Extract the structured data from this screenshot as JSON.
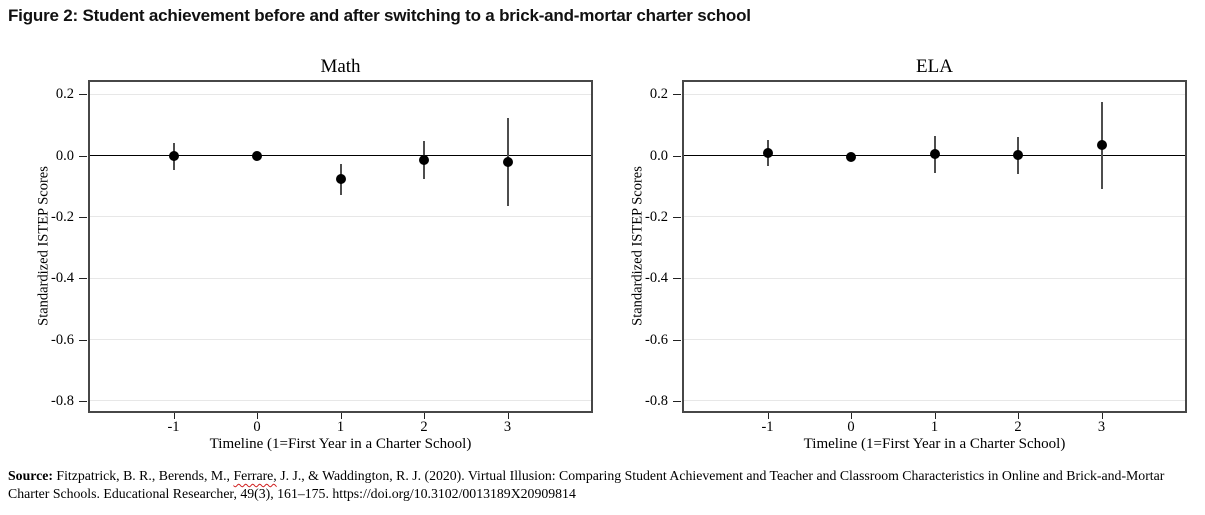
{
  "figure": {
    "title": "Figure 2: Student achievement before and after switching to a brick-and-mortar charter school"
  },
  "source": {
    "label": "Source:",
    "text_before": " Fitzpatrick, B. R., Berends, M., ",
    "misspelled": "Ferrare,",
    "text_after": " J. J., & Waddington, R. J. (2020). Virtual Illusion: Comparing Student Achievement and Teacher and Classroom Characteristics in Online and Brick-and-Mortar Charter Schools. Educational Researcher, 49(3), 161–175. https://doi.org/10.3102/0013189X20909814",
    "misspelling_underline_color": "#cf1d1d"
  },
  "chart_data": [
    {
      "type": "scatter",
      "title": "Math",
      "xlabel": "Timeline (1=First Year in a Charter School)",
      "ylabel": "Standardized ISTEP Scores",
      "x": [
        -1,
        0,
        1,
        2,
        3
      ],
      "y": [
        -0.002,
        0.0,
        -0.077,
        -0.013,
        -0.022
      ],
      "ci_low": [
        -0.046,
        null,
        -0.128,
        -0.077,
        -0.163
      ],
      "ci_high": [
        0.042,
        null,
        -0.028,
        0.048,
        0.121
      ],
      "xticks": [
        {
          "v": -1,
          "label": "-1"
        },
        {
          "v": 0,
          "label": "0"
        },
        {
          "v": 1,
          "label": "1"
        },
        {
          "v": 2,
          "label": "2"
        },
        {
          "v": 3,
          "label": "3"
        }
      ],
      "yticks": [
        {
          "v": 0.2,
          "label": "0.2"
        },
        {
          "v": 0.0,
          "label": "0.0"
        },
        {
          "v": -0.2,
          "label": "-0.2"
        },
        {
          "v": -0.4,
          "label": "-0.4"
        },
        {
          "v": -0.6,
          "label": "-0.6"
        },
        {
          "v": -0.8,
          "label": "-0.8"
        }
      ],
      "xlim": [
        -2,
        4
      ],
      "ylim": [
        -0.833,
        0.24
      ],
      "refline_y": 0,
      "grid": true,
      "legend": "none",
      "marker_color": "#000000",
      "errorbar_color": "#4d4d4d",
      "gridline_color": "#e7e7e7",
      "refline_color": "#000000"
    },
    {
      "type": "scatter",
      "title": "ELA",
      "xlabel": "Timeline (1=First Year in a Charter School)",
      "ylabel": "Standardized ISTEP Scores",
      "x": [
        -1,
        0,
        1,
        2,
        3
      ],
      "y": [
        0.01,
        -0.005,
        0.004,
        0.001,
        0.036
      ],
      "ci_low": [
        -0.033,
        null,
        -0.057,
        -0.06,
        -0.11
      ],
      "ci_high": [
        0.052,
        null,
        0.065,
        0.061,
        0.176
      ],
      "xticks": [
        {
          "v": -1,
          "label": "-1"
        },
        {
          "v": 0,
          "label": "0"
        },
        {
          "v": 1,
          "label": "1"
        },
        {
          "v": 2,
          "label": "2"
        },
        {
          "v": 3,
          "label": "3"
        }
      ],
      "yticks": [
        {
          "v": 0.2,
          "label": "0.2"
        },
        {
          "v": 0.0,
          "label": "0.0"
        },
        {
          "v": -0.2,
          "label": "-0.2"
        },
        {
          "v": -0.4,
          "label": "-0.4"
        },
        {
          "v": -0.6,
          "label": "-0.6"
        },
        {
          "v": -0.8,
          "label": "-0.8"
        }
      ],
      "xlim": [
        -2,
        4
      ],
      "ylim": [
        -0.833,
        0.24
      ],
      "refline_y": 0,
      "grid": true,
      "legend": "none",
      "marker_color": "#000000",
      "errorbar_color": "#4d4d4d",
      "gridline_color": "#e7e7e7",
      "refline_color": "#000000"
    }
  ]
}
